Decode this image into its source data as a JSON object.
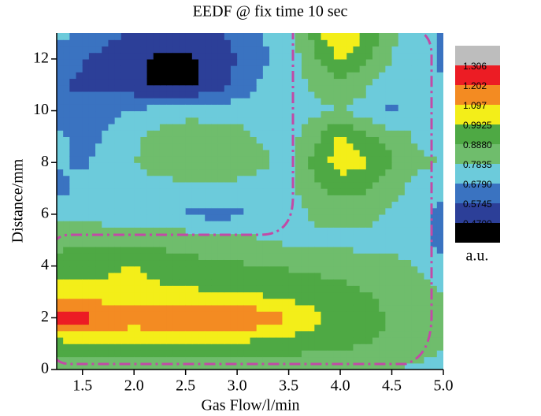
{
  "chart_data": {
    "type": "contour",
    "title": "EEDF @ fix time 10 sec",
    "x_label": "Gas Flow/l/min",
    "y_label": "Distance/mm",
    "colorbar_label": "a.u.",
    "x": [
      1.25,
      1.5,
      1.75,
      2.0,
      2.25,
      2.5,
      2.75,
      3.0,
      3.25,
      3.5,
      3.75,
      4.0,
      4.25,
      4.5,
      4.75,
      5.0
    ],
    "y": [
      0,
      1,
      2,
      3,
      4,
      5,
      6,
      7,
      8,
      9,
      10,
      11,
      12,
      13
    ],
    "z": [
      [
        0.8,
        0.8,
        0.8,
        0.8,
        0.8,
        0.8,
        0.8,
        0.8,
        0.8,
        0.8,
        0.8,
        0.8,
        0.8,
        0.79,
        0.76,
        0.72
      ],
      [
        0.95,
        0.97,
        0.98,
        0.98,
        0.98,
        0.98,
        0.98,
        0.97,
        0.96,
        0.95,
        0.93,
        0.91,
        0.89,
        0.87,
        0.84,
        0.8
      ],
      [
        1.25,
        1.24,
        1.2,
        1.16,
        1.18,
        1.22,
        1.23,
        1.21,
        1.16,
        1.1,
        1.02,
        0.96,
        0.92,
        0.88,
        0.84,
        0.8
      ],
      [
        1.05,
        1.04,
        1.03,
        1.02,
        1.02,
        1.01,
        1.0,
        0.99,
        0.97,
        0.95,
        0.93,
        0.91,
        0.89,
        0.86,
        0.82,
        0.78
      ],
      [
        0.93,
        0.94,
        0.97,
        1.0,
        0.95,
        0.92,
        0.91,
        0.9,
        0.89,
        0.88,
        0.87,
        0.86,
        0.85,
        0.82,
        0.78,
        0.75
      ],
      [
        0.86,
        0.87,
        0.87,
        0.87,
        0.86,
        0.85,
        0.84,
        0.82,
        0.79,
        0.76,
        0.75,
        0.74,
        0.74,
        0.74,
        0.72,
        0.62
      ],
      [
        0.74,
        0.74,
        0.73,
        0.72,
        0.7,
        0.67,
        0.65,
        0.66,
        0.7,
        0.74,
        0.8,
        0.84,
        0.82,
        0.76,
        0.72,
        0.64
      ],
      [
        0.64,
        0.72,
        0.74,
        0.74,
        0.74,
        0.74,
        0.74,
        0.74,
        0.74,
        0.75,
        0.86,
        0.92,
        0.9,
        0.82,
        0.74,
        0.72
      ],
      [
        0.7,
        0.66,
        0.74,
        0.78,
        0.84,
        0.88,
        0.88,
        0.86,
        0.8,
        0.76,
        0.92,
        1.05,
        1.0,
        0.9,
        0.8,
        0.78
      ],
      [
        0.72,
        0.62,
        0.7,
        0.76,
        0.82,
        0.86,
        0.85,
        0.82,
        0.77,
        0.74,
        0.86,
        1.02,
        0.92,
        0.84,
        0.77,
        0.76
      ],
      [
        0.62,
        0.6,
        0.64,
        0.7,
        0.72,
        0.74,
        0.74,
        0.74,
        0.74,
        0.74,
        0.76,
        0.78,
        0.74,
        0.66,
        0.72,
        0.74
      ],
      [
        0.58,
        0.56,
        0.54,
        0.5,
        0.44,
        0.44,
        0.5,
        0.6,
        0.7,
        0.73,
        0.8,
        0.86,
        0.8,
        0.72,
        0.74,
        0.68
      ],
      [
        0.62,
        0.58,
        0.54,
        0.5,
        0.44,
        0.44,
        0.5,
        0.58,
        0.66,
        0.72,
        0.86,
        1.0,
        0.9,
        0.78,
        0.74,
        0.66
      ],
      [
        0.72,
        0.66,
        0.6,
        0.56,
        0.55,
        0.55,
        0.56,
        0.6,
        0.68,
        0.74,
        0.94,
        1.12,
        0.98,
        0.8,
        0.74,
        0.66
      ]
    ],
    "levels": [
      {
        "value": 0.47,
        "label": "0.4700"
      },
      0.5745,
      {
        "value": 0.679,
        "label": "0.6790"
      },
      0.7835,
      {
        "value": 0.888,
        "label": "0.8880"
      },
      0.9925,
      1.097,
      1.202,
      1.306
    ],
    "colors": [
      "#000000",
      "#2c3f98",
      "#3a73c1",
      "#6ccbdb",
      "#6fbd6c",
      "#4ea944",
      "#f3ee19",
      "#f38b22",
      "#ec1c24",
      "#bdbdbd"
    ],
    "xlim": [
      1.25,
      5.0
    ],
    "xticks": [
      {
        "value": 1.5,
        "label": "1.5"
      },
      {
        "value": 2,
        "label": "2.0"
      },
      {
        "value": 2.5,
        "label": "2.5"
      },
      {
        "value": 3,
        "label": "3.0"
      },
      {
        "value": 3.5,
        "label": "3.5"
      },
      {
        "value": 4,
        "label": "4.0"
      },
      {
        "value": 4.5,
        "label": "4.5"
      },
      {
        "value": 5,
        "label": "5.0"
      }
    ],
    "ylim": [
      0,
      13
    ],
    "yticks": [
      0,
      2,
      4,
      6,
      8,
      10,
      12
    ]
  }
}
